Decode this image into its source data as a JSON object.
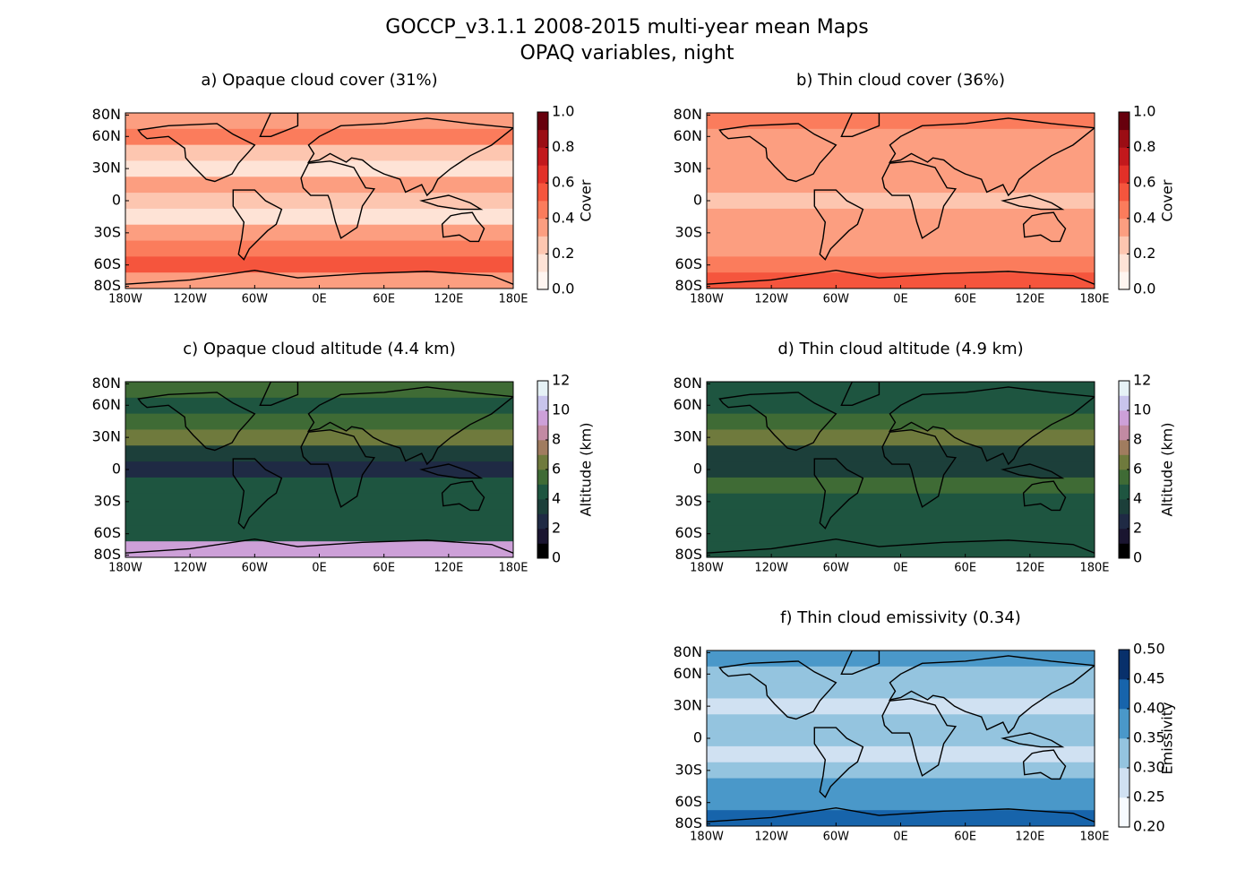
{
  "title": "GOCCP_v3.1.1 2008-2015 multi-year mean Maps",
  "subtitle": "OPAQ variables, night",
  "chart_data": [
    {
      "type": "map",
      "title": "a) Opaque cloud cover (31%)",
      "xlim": [
        -180,
        180
      ],
      "xticks": [
        {
          "value": -180,
          "label": "180W"
        },
        {
          "value": -120,
          "label": "120W"
        },
        {
          "value": -60,
          "label": "60W"
        },
        {
          "value": 0,
          "label": "0E"
        },
        {
          "value": 60,
          "label": "60E"
        },
        {
          "value": 120,
          "label": "120E"
        },
        {
          "value": 180,
          "label": "180E"
        }
      ],
      "ylim": [
        -82,
        82
      ],
      "yticks": [
        {
          "value": 80,
          "label": "80N"
        },
        {
          "value": 60,
          "label": "60N"
        },
        {
          "value": 30,
          "label": "30N"
        },
        0,
        {
          "value": -30,
          "label": "30S"
        },
        {
          "value": -60,
          "label": "60S"
        },
        {
          "value": -80,
          "label": "80S"
        }
      ],
      "colorbar": {
        "label": "Cover",
        "lim": [
          0,
          1
        ],
        "ticks": [
          {
            "value": 0,
            "label": "0.0"
          },
          0.2,
          0.4,
          0.6,
          0.8,
          {
            "value": 1,
            "label": "1.0"
          }
        ],
        "colors": [
          "#fff5f0",
          "#fee3d6",
          "#fdc6b0",
          "#fc9e80",
          "#fb7c5c",
          "#f5553d",
          "#e23028",
          "#c2181c",
          "#9b0d14",
          "#67000d"
        ]
      }
    },
    {
      "type": "map",
      "title": "b) Thin cloud cover (36%)",
      "xlim": [
        -180,
        180
      ],
      "xticks": [
        {
          "value": -180,
          "label": "180W"
        },
        {
          "value": -120,
          "label": "120W"
        },
        {
          "value": -60,
          "label": "60W"
        },
        {
          "value": 0,
          "label": "0E"
        },
        {
          "value": 60,
          "label": "60E"
        },
        {
          "value": 120,
          "label": "120E"
        },
        {
          "value": 180,
          "label": "180E"
        }
      ],
      "ylim": [
        -82,
        82
      ],
      "yticks": [
        {
          "value": 80,
          "label": "80N"
        },
        {
          "value": 60,
          "label": "60N"
        },
        {
          "value": 30,
          "label": "30N"
        },
        0,
        {
          "value": -30,
          "label": "30S"
        },
        {
          "value": -60,
          "label": "60S"
        },
        {
          "value": -80,
          "label": "80S"
        }
      ],
      "colorbar": {
        "label": "Cover",
        "lim": [
          0,
          1
        ],
        "ticks": [
          {
            "value": 0,
            "label": "0.0"
          },
          0.2,
          0.4,
          0.6,
          0.8,
          {
            "value": 1,
            "label": "1.0"
          }
        ],
        "colors": [
          "#fff5f0",
          "#fee3d6",
          "#fdc6b0",
          "#fc9e80",
          "#fb7c5c",
          "#f5553d",
          "#e23028",
          "#c2181c",
          "#9b0d14",
          "#67000d"
        ]
      }
    },
    {
      "type": "map",
      "title": "c) Opaque cloud altitude (4.4 km)",
      "xlim": [
        -180,
        180
      ],
      "xticks": [
        {
          "value": -180,
          "label": "180W"
        },
        {
          "value": -120,
          "label": "120W"
        },
        {
          "value": -60,
          "label": "60W"
        },
        {
          "value": 0,
          "label": "0E"
        },
        {
          "value": 60,
          "label": "60E"
        },
        {
          "value": 120,
          "label": "120E"
        },
        {
          "value": 180,
          "label": "180E"
        }
      ],
      "ylim": [
        -82,
        82
      ],
      "yticks": [
        {
          "value": 80,
          "label": "80N"
        },
        {
          "value": 60,
          "label": "60N"
        },
        {
          "value": 30,
          "label": "30N"
        },
        0,
        {
          "value": -30,
          "label": "30S"
        },
        {
          "value": -60,
          "label": "60S"
        },
        {
          "value": -80,
          "label": "80S"
        }
      ],
      "colorbar": {
        "label": "Altitude (km)",
        "lim": [
          0,
          12
        ],
        "ticks": [
          0,
          2,
          4,
          6,
          8,
          10,
          12
        ],
        "colors": [
          "#000000",
          "#1a1530",
          "#1f2a44",
          "#1c3f3a",
          "#1e5540",
          "#3f6b35",
          "#6f7a3d",
          "#a07c5f",
          "#c28aa3",
          "#cda0d8",
          "#c8c4ec",
          "#e6f2f6"
        ]
      }
    },
    {
      "type": "map",
      "title": "d) Thin cloud altitude (4.9 km)",
      "xlim": [
        -180,
        180
      ],
      "xticks": [
        {
          "value": -180,
          "label": "180W"
        },
        {
          "value": -120,
          "label": "120W"
        },
        {
          "value": -60,
          "label": "60W"
        },
        {
          "value": 0,
          "label": "0E"
        },
        {
          "value": 60,
          "label": "60E"
        },
        {
          "value": 120,
          "label": "120E"
        },
        {
          "value": 180,
          "label": "180E"
        }
      ],
      "ylim": [
        -82,
        82
      ],
      "yticks": [
        {
          "value": 80,
          "label": "80N"
        },
        {
          "value": 60,
          "label": "60N"
        },
        {
          "value": 30,
          "label": "30N"
        },
        0,
        {
          "value": -30,
          "label": "30S"
        },
        {
          "value": -60,
          "label": "60S"
        },
        {
          "value": -80,
          "label": "80S"
        }
      ],
      "colorbar": {
        "label": "Altitude (km)",
        "lim": [
          0,
          12
        ],
        "ticks": [
          0,
          2,
          4,
          6,
          8,
          10,
          12
        ],
        "colors": [
          "#000000",
          "#1a1530",
          "#1f2a44",
          "#1c3f3a",
          "#1e5540",
          "#3f6b35",
          "#6f7a3d",
          "#a07c5f",
          "#c28aa3",
          "#cda0d8",
          "#c8c4ec",
          "#e6f2f6"
        ]
      }
    },
    {
      "type": "map",
      "title": "f) Thin cloud emissivity (0.34)",
      "xlim": [
        -180,
        180
      ],
      "xticks": [
        {
          "value": -180,
          "label": "180W"
        },
        {
          "value": -120,
          "label": "120W"
        },
        {
          "value": -60,
          "label": "60W"
        },
        {
          "value": 0,
          "label": "0E"
        },
        {
          "value": 60,
          "label": "60E"
        },
        {
          "value": 120,
          "label": "120E"
        },
        {
          "value": 180,
          "label": "180E"
        }
      ],
      "ylim": [
        -82,
        82
      ],
      "yticks": [
        {
          "value": 80,
          "label": "80N"
        },
        {
          "value": 60,
          "label": "60N"
        },
        {
          "value": 30,
          "label": "30N"
        },
        0,
        {
          "value": -30,
          "label": "30S"
        },
        {
          "value": -60,
          "label": "60S"
        },
        {
          "value": -80,
          "label": "80S"
        }
      ],
      "colorbar": {
        "label": "Emissivity",
        "lim": [
          0.2,
          0.5
        ],
        "ticks": [
          {
            "value": 0.2,
            "label": "0.20"
          },
          0.25,
          {
            "value": 0.3,
            "label": "0.30"
          },
          0.35,
          {
            "value": 0.4,
            "label": "0.40"
          },
          0.45,
          {
            "value": 0.5,
            "label": "0.50"
          }
        ],
        "colors": [
          "#f7fbff",
          "#d0e1f2",
          "#94c4df",
          "#4a98c9",
          "#1764ab",
          "#08306b"
        ]
      }
    }
  ]
}
